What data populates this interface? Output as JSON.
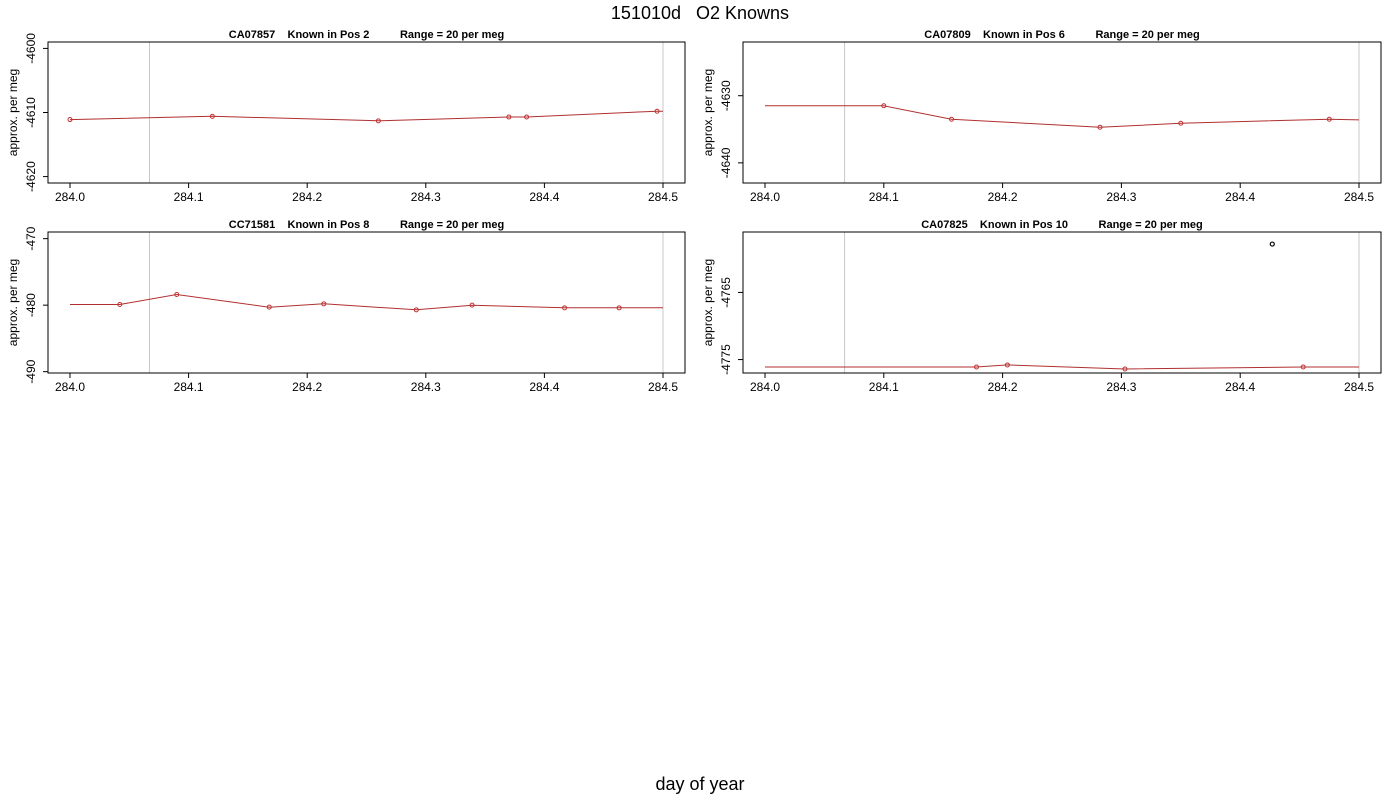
{
  "page": {
    "title": "151010d   O2 Knowns",
    "xlabel": "day of year"
  },
  "chart_data": [
    {
      "type": "line",
      "title": "CA07857    Known in Pos 2          Range = 20 per meg",
      "ylabel": "approx. per meg",
      "xlim": [
        284.0,
        284.5
      ],
      "ylim": [
        -4621,
        -4599
      ],
      "xticks": [
        284.0,
        284.1,
        284.2,
        284.3,
        284.4,
        284.5
      ],
      "yticks": [
        -4620,
        -4610,
        -4600
      ],
      "vlines": [
        284.067,
        284.5
      ],
      "line": {
        "x": [
          284.0,
          284.12,
          284.26,
          284.37,
          284.385,
          284.495,
          284.5
        ],
        "y": [
          -4611.1,
          -4610.6,
          -4611.3,
          -4610.7,
          -4610.7,
          -4609.8,
          -4609.8
        ]
      },
      "points": {
        "x": [
          284.0,
          284.12,
          284.26,
          284.37,
          284.385,
          284.495
        ],
        "y": [
          -4611.1,
          -4610.6,
          -4611.3,
          -4610.7,
          -4610.7,
          -4609.8
        ]
      },
      "outliers": {
        "x": [],
        "y": []
      }
    },
    {
      "type": "line",
      "title": "CA07809    Known in Pos 6          Range = 20 per meg",
      "ylabel": "approx. per meg",
      "xlim": [
        284.0,
        284.5
      ],
      "ylim": [
        -4643,
        -4622
      ],
      "xticks": [
        284.0,
        284.1,
        284.2,
        284.3,
        284.4,
        284.5
      ],
      "yticks": [
        -4640,
        -4630
      ],
      "vlines": [
        284.067,
        284.5
      ],
      "line": {
        "x": [
          284.0,
          284.1,
          284.157,
          284.282,
          284.35,
          284.475,
          284.5
        ],
        "y": [
          -4631.5,
          -4631.5,
          -4633.5,
          -4634.7,
          -4634.1,
          -4633.5,
          -4633.6
        ]
      },
      "points": {
        "x": [
          284.1,
          284.157,
          284.282,
          284.35,
          284.475
        ],
        "y": [
          -4631.5,
          -4633.5,
          -4634.7,
          -4634.1,
          -4633.5
        ]
      },
      "outliers": {
        "x": [],
        "y": []
      }
    },
    {
      "type": "line",
      "title": "CC71581    Known in Pos 8          Range = 20 per meg",
      "ylabel": "approx. per meg",
      "xlim": [
        284.0,
        284.5
      ],
      "ylim": [
        -490.2,
        -469
      ],
      "xticks": [
        284.0,
        284.1,
        284.2,
        284.3,
        284.4,
        284.5
      ],
      "yticks": [
        -490,
        -480,
        -470
      ],
      "vlines": [
        284.067,
        284.5
      ],
      "line": {
        "x": [
          284.0,
          284.042,
          284.09,
          284.168,
          284.214,
          284.292,
          284.339,
          284.417,
          284.463,
          284.5
        ],
        "y": [
          -479.9,
          -479.9,
          -478.4,
          -480.3,
          -479.8,
          -480.7,
          -480.0,
          -480.4,
          -480.4,
          -480.4
        ]
      },
      "points": {
        "x": [
          284.042,
          284.09,
          284.168,
          284.214,
          284.292,
          284.339,
          284.417,
          284.463
        ],
        "y": [
          -479.9,
          -478.4,
          -480.3,
          -479.8,
          -480.7,
          -480.0,
          -480.4,
          -480.4
        ]
      },
      "outliers": {
        "x": [],
        "y": []
      }
    },
    {
      "type": "line",
      "title": "CA07825    Known in Pos 10          Range = 20 per meg",
      "ylabel": "approx. per meg",
      "xlim": [
        284.0,
        284.5
      ],
      "ylim": [
        -4777,
        -4756
      ],
      "xticks": [
        284.0,
        284.1,
        284.2,
        284.3,
        284.4,
        284.5
      ],
      "yticks": [
        -4775,
        -4765
      ],
      "vlines": [
        284.067,
        284.5
      ],
      "line": {
        "x": [
          284.0,
          284.178,
          284.204,
          284.303,
          284.453,
          284.5
        ],
        "y": [
          -4776.1,
          -4776.1,
          -4775.8,
          -4776.4,
          -4776.1,
          -4776.1
        ]
      },
      "points": {
        "x": [
          284.178,
          284.204,
          284.303,
          284.453
        ],
        "y": [
          -4776.1,
          -4775.8,
          -4776.4,
          -4776.1
        ]
      },
      "outliers": {
        "x": [
          284.427
        ],
        "y": [
          -4757.8
        ]
      }
    }
  ],
  "colors": {
    "line": "#b03030",
    "marker": "#c03030",
    "outlier": "#000000",
    "vline": "#c8c8c8",
    "axis": "#000000"
  }
}
